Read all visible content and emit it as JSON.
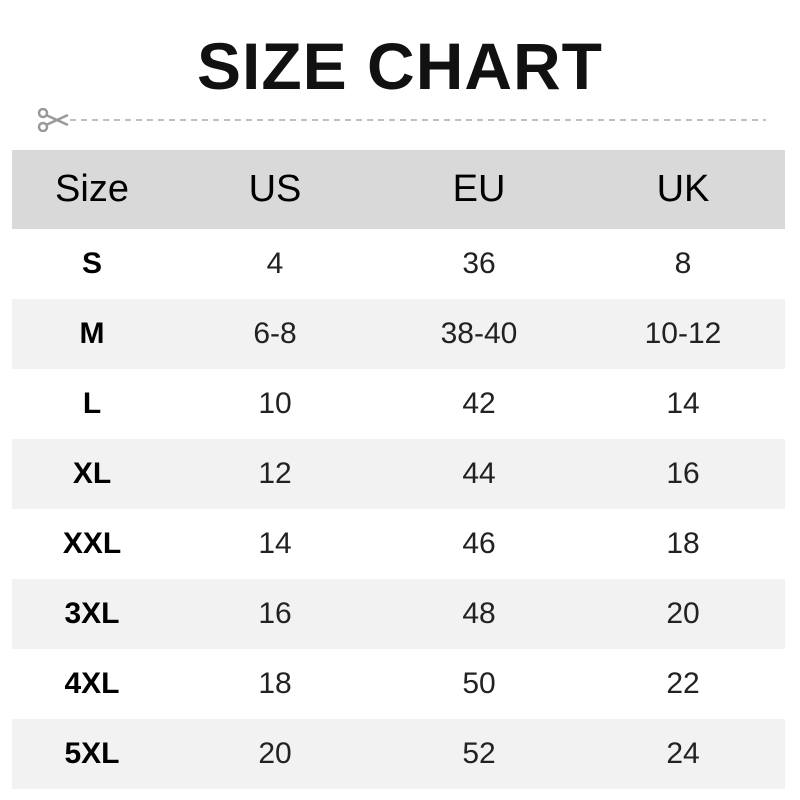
{
  "title": "SIZE CHART",
  "icons": {
    "cut": "scissors-icon"
  },
  "colors": {
    "header_bg": "#d9d9d9",
    "stripe_bg": "#f2f2f2",
    "dash": "#aaaaaa"
  },
  "table": {
    "headers": [
      "Size",
      "US",
      "EU",
      "UK"
    ],
    "rows": [
      [
        "S",
        "4",
        "36",
        "8"
      ],
      [
        "M",
        "6-8",
        "38-40",
        "10-12"
      ],
      [
        "L",
        "10",
        "42",
        "14"
      ],
      [
        "XL",
        "12",
        "44",
        "16"
      ],
      [
        "XXL",
        "14",
        "46",
        "18"
      ],
      [
        "3XL",
        "16",
        "48",
        "20"
      ],
      [
        "4XL",
        "18",
        "50",
        "22"
      ],
      [
        "5XL",
        "20",
        "52",
        "24"
      ]
    ]
  }
}
